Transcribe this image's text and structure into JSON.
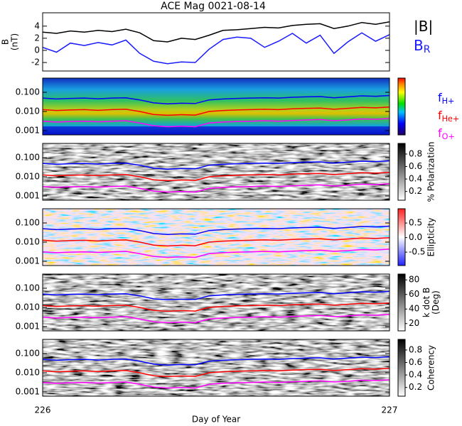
{
  "chart_data": [
    {
      "type": "line",
      "title": "ACE Mag 0021-08-14",
      "ylabel": [
        "B",
        "(nT)"
      ],
      "x": [
        226.0,
        226.04,
        226.08,
        226.12,
        226.16,
        226.2,
        226.24,
        226.28,
        226.32,
        226.36,
        226.4,
        226.44,
        226.48,
        226.52,
        226.56,
        226.6,
        226.64,
        226.68,
        226.72,
        226.76,
        226.8,
        226.84,
        226.88,
        226.92,
        226.96,
        227.0
      ],
      "ylim": [
        -3.4,
        6.2
      ],
      "yticks": [
        -2,
        0,
        2,
        4
      ],
      "series": [
        {
          "name": "|B|",
          "color": "#000000",
          "values": [
            3.0,
            2.8,
            3.2,
            3.0,
            3.3,
            3.1,
            3.5,
            2.9,
            1.6,
            1.4,
            2.0,
            1.8,
            2.5,
            3.3,
            3.4,
            3.6,
            3.8,
            3.7,
            4.1,
            4.3,
            4.4,
            3.6,
            4.0,
            4.6,
            4.3,
            4.7
          ]
        },
        {
          "name": "B",
          "sub": "R",
          "color": "#1a1aff",
          "values": [
            0.5,
            -0.3,
            1.2,
            0.8,
            1.3,
            0.9,
            1.7,
            -0.5,
            -1.8,
            -2.2,
            -1.9,
            -2.0,
            0.2,
            1.8,
            2.2,
            2.0,
            0.5,
            1.5,
            2.8,
            1.2,
            2.5,
            -0.5,
            1.4,
            2.9,
            1.5,
            2.6
          ]
        }
      ]
    },
    {
      "type": "spectrogram",
      "colormap": "rainbow",
      "log_y": true,
      "ylim": [
        0.0006,
        0.55
      ],
      "yticks": [
        {
          "value": 0.1,
          "label": "0.100"
        },
        {
          "value": 0.01,
          "label": "0.010"
        },
        {
          "value": 0.001,
          "label": "0.001"
        }
      ],
      "x": [
        226.0,
        226.04,
        226.08,
        226.12,
        226.16,
        226.2,
        226.24,
        226.28,
        226.32,
        226.36,
        226.4,
        226.44,
        226.48,
        226.52,
        226.56,
        226.6,
        226.64,
        226.68,
        226.72,
        226.76,
        226.8,
        226.84,
        226.88,
        226.92,
        226.96,
        227.0
      ],
      "series": [
        {
          "name": "f",
          "sub": "H+",
          "color": "#0000ff",
          "values": [
            0.05,
            0.045,
            0.048,
            0.05,
            0.046,
            0.05,
            0.052,
            0.04,
            0.028,
            0.025,
            0.027,
            0.026,
            0.04,
            0.045,
            0.048,
            0.05,
            0.052,
            0.05,
            0.055,
            0.058,
            0.06,
            0.052,
            0.058,
            0.065,
            0.062,
            0.068
          ]
        },
        {
          "name": "f",
          "sub": "He+",
          "color": "#ff0000",
          "values": [
            0.0125,
            0.0113,
            0.012,
            0.0125,
            0.0115,
            0.0125,
            0.013,
            0.01,
            0.007,
            0.0063,
            0.0068,
            0.0065,
            0.01,
            0.0113,
            0.012,
            0.0125,
            0.013,
            0.0125,
            0.0138,
            0.0145,
            0.015,
            0.013,
            0.0145,
            0.0163,
            0.0155,
            0.017
          ]
        },
        {
          "name": "f",
          "sub": "O+",
          "color": "#ff00ff",
          "values": [
            0.0031,
            0.0028,
            0.003,
            0.0031,
            0.0029,
            0.0031,
            0.0033,
            0.0025,
            0.0018,
            0.0016,
            0.0017,
            0.0016,
            0.0025,
            0.0028,
            0.003,
            0.0031,
            0.0033,
            0.0031,
            0.0034,
            0.0036,
            0.0038,
            0.0033,
            0.0036,
            0.0041,
            0.0039,
            0.0043
          ]
        }
      ]
    },
    {
      "type": "spectrogram",
      "colormap": "gray",
      "log_y": true,
      "ylim": [
        0.0006,
        0.55
      ],
      "yticks": [
        {
          "value": 0.1,
          "label": "0.100"
        },
        {
          "value": 0.01,
          "label": "0.010"
        },
        {
          "value": 0.001,
          "label": "0.001"
        }
      ],
      "colorbar_label": [
        "% Polarization"
      ],
      "zlim": [
        0.06,
        0.97
      ],
      "zticks": [
        0.8,
        0.6,
        0.4,
        0.2
      ]
    },
    {
      "type": "spectrogram",
      "colormap": "bwr",
      "log_y": true,
      "ylim": [
        0.0006,
        0.55
      ],
      "yticks": [
        {
          "value": 0.1,
          "label": "0.100"
        },
        {
          "value": 0.01,
          "label": "0.010"
        },
        {
          "value": 0.001,
          "label": "0.001"
        }
      ],
      "colorbar_label": [
        "Ellipticity"
      ],
      "zlim": [
        -0.96,
        0.99
      ],
      "zticks": [
        0.5,
        {
          "value": 0,
          "label": "0.0"
        },
        -0.5
      ]
    },
    {
      "type": "spectrogram",
      "colormap": "gray",
      "log_y": true,
      "ylim": [
        0.0006,
        0.55
      ],
      "yticks": [
        {
          "value": 0.1,
          "label": "0.100"
        },
        {
          "value": 0.01,
          "label": "0.010"
        },
        {
          "value": 0.001,
          "label": "0.001"
        }
      ],
      "colorbar_label": [
        "k dot B",
        "(Deg)"
      ],
      "zlim": [
        10,
        88
      ],
      "zticks": [
        80,
        60,
        40,
        20
      ]
    },
    {
      "type": "spectrogram",
      "colormap": "gray",
      "log_y": true,
      "ylim": [
        0.0006,
        0.55
      ],
      "yticks": [
        {
          "value": 0.1,
          "label": "0.100"
        },
        {
          "value": 0.01,
          "label": "0.010"
        },
        {
          "value": 0.001,
          "label": "0.001"
        }
      ],
      "colorbar_label": [
        "Coherency"
      ],
      "zlim": [
        0.06,
        0.97
      ],
      "zticks": [
        0.8,
        0.6,
        0.4,
        0.2
      ],
      "xlim": [
        226,
        227
      ],
      "xticks": [
        226,
        227
      ],
      "xlabel": "Day of Year"
    }
  ]
}
